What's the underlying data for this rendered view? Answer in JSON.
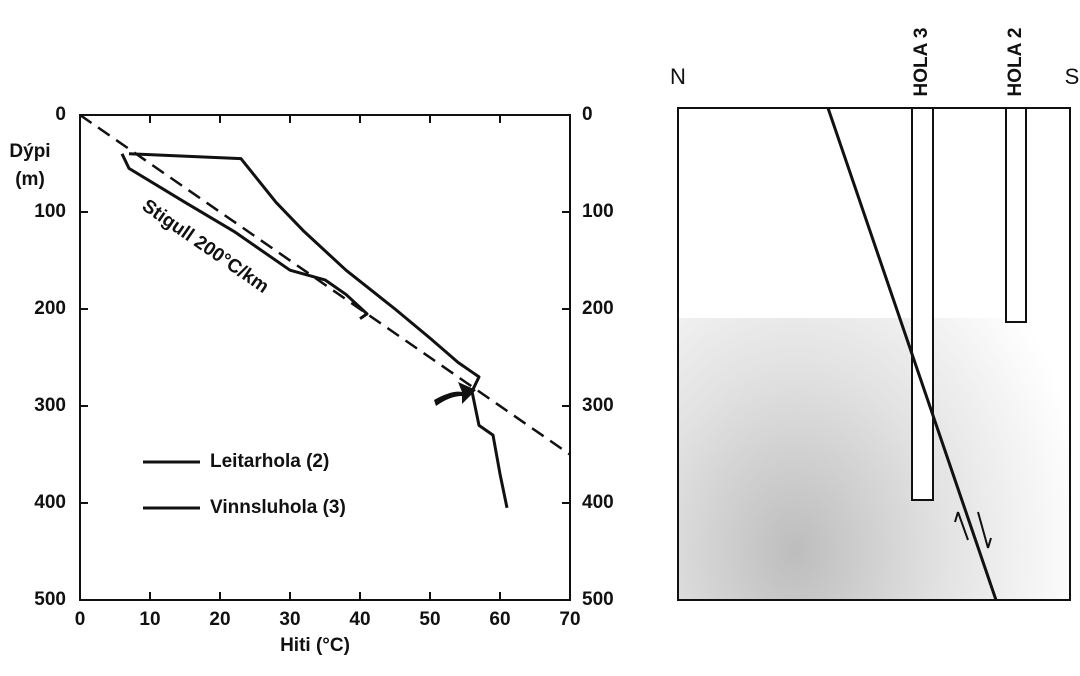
{
  "chart_data": {
    "type": "line",
    "xlabel": "Hiti (°C)",
    "ylabel": [
      "Dýpi",
      "(m)"
    ],
    "xlim": [
      0,
      70
    ],
    "xticks": [
      0,
      10,
      20,
      30,
      40,
      50,
      60,
      70
    ],
    "ylim": [
      0,
      500
    ],
    "yticks": [
      0,
      100,
      200,
      300,
      400,
      500
    ],
    "y_inverted": true,
    "y2lim": [
      0,
      500
    ],
    "y2ticks": [
      0,
      100,
      200,
      300,
      400,
      500
    ],
    "series": [
      {
        "name": "Leitarhola (2)",
        "color": "#111111",
        "x": [
          6,
          7,
          15,
          22,
          30,
          35,
          38,
          41,
          40
        ],
        "values": [
          40,
          55,
          90,
          120,
          160,
          170,
          185,
          205,
          210
        ]
      },
      {
        "name": "Vinnsluhola (3)",
        "color": "#111111",
        "x": [
          7,
          23,
          28,
          32,
          38,
          45,
          50,
          54,
          56,
          57,
          56,
          57,
          59,
          60,
          61
        ],
        "values": [
          40,
          45,
          90,
          120,
          160,
          200,
          230,
          255,
          265,
          270,
          285,
          320,
          330,
          370,
          405
        ]
      }
    ],
    "gradient_line": {
      "label": "Stigull 200°C/km",
      "x": [
        0,
        70
      ],
      "values": [
        0,
        350
      ]
    }
  },
  "diagram": {
    "left_label": "N",
    "right_label": "S",
    "wells": [
      "HOLA 3",
      "HOLA 2"
    ]
  }
}
